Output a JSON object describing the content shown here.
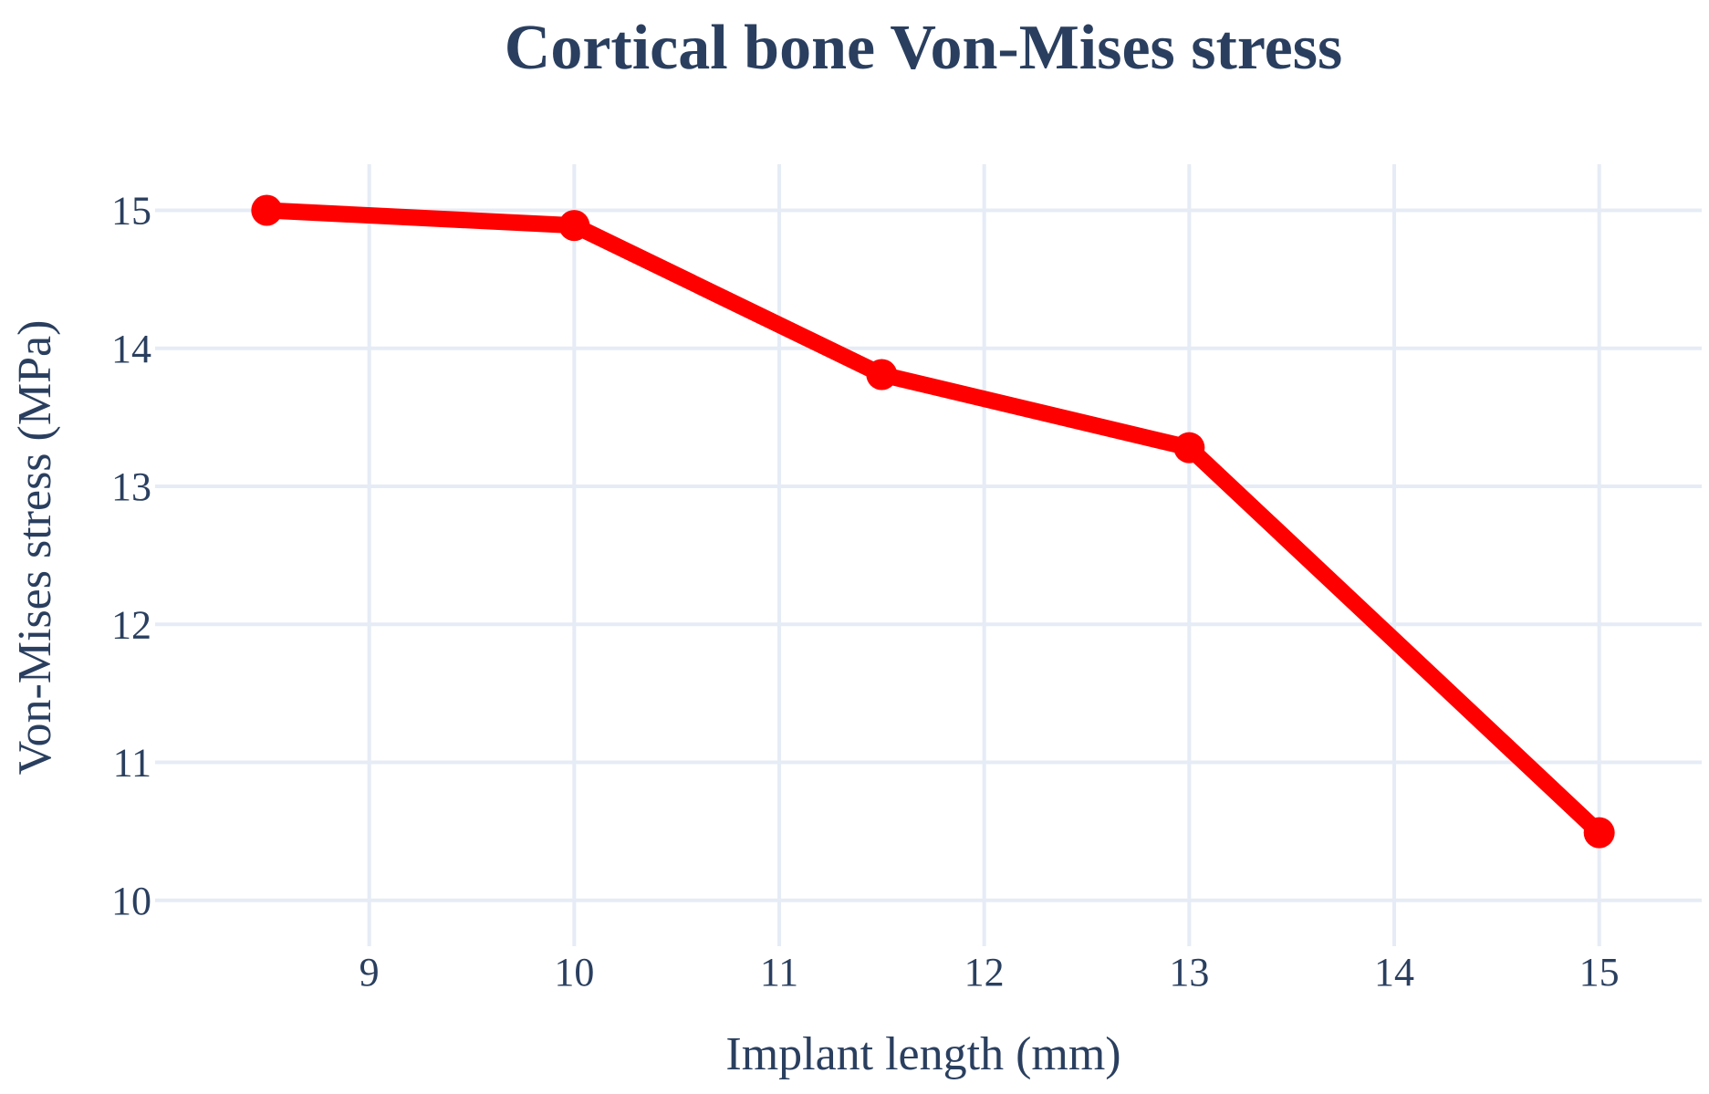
{
  "chart_data": {
    "type": "line",
    "title": "Cortical bone Von-Mises stress",
    "xlabel": "Implant length (mm)",
    "ylabel": "Von-Mises stress (MPa)",
    "xlim": [
      8.0,
      15.5
    ],
    "ylim": [
      9.8,
      15.4
    ],
    "x_ticks": [
      9,
      10,
      11,
      12,
      13,
      14,
      15
    ],
    "y_ticks": [
      10,
      11,
      12,
      13,
      14,
      15
    ],
    "grid": true,
    "series": [
      {
        "name": "Cortical bone",
        "color": "#ff0000",
        "x": [
          8.5,
          10,
          11.5,
          13,
          15
        ],
        "y": [
          15.0,
          14.89,
          13.81,
          13.28,
          10.49
        ]
      }
    ]
  }
}
